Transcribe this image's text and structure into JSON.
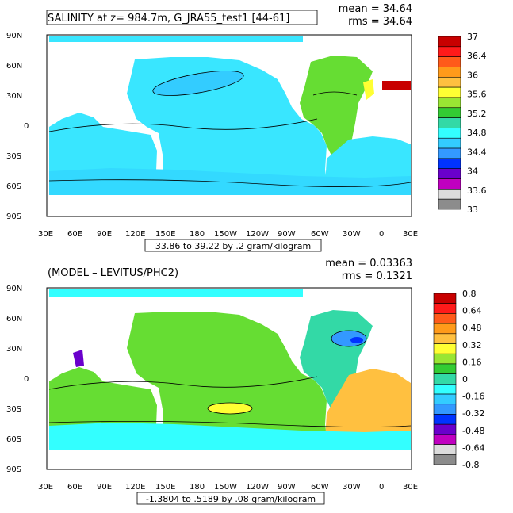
{
  "panels": [
    {
      "title": "SALINITY at z= 984.7m, G_JRA55_test1 [44-61]",
      "stats": {
        "mean": "mean = 34.64",
        "rms": "rms = 34.64"
      },
      "range_label": "33.86 to 39.22 by .2 gram/kilogram",
      "colorbar": {
        "labels": [
          "37",
          "36.4",
          "36",
          "35.6",
          "35.2",
          "34.8",
          "34.4",
          "34",
          "33.6",
          "33"
        ],
        "colors": [
          "#c80000",
          "#ff1a1a",
          "#ff5a1a",
          "#ff9a1a",
          "#ffc040",
          "#ffff33",
          "#99e633",
          "#33cc33",
          "#33d9a6",
          "#33ffff",
          "#33ccff",
          "#3399ff",
          "#0033ff",
          "#6a00cc",
          "#c000c0",
          "#dcdcdc",
          "#8c8c8c"
        ]
      }
    },
    {
      "title": "(MODEL – LEVITUS/PHC2)",
      "stats": {
        "mean": "mean = 0.03363",
        "rms": "rms = 0.1321"
      },
      "range_label": "-1.3804 to .5189 by .08 gram/kilogram",
      "colorbar": {
        "labels": [
          "0.8",
          "0.64",
          "0.48",
          "0.32",
          "0.16",
          "0",
          "-0.16",
          "-0.32",
          "-0.48",
          "-0.64",
          "-0.8"
        ],
        "colors": [
          "#c80000",
          "#ff1a1a",
          "#ff5a1a",
          "#ff9a1a",
          "#ffc040",
          "#ffff33",
          "#99e633",
          "#33cc33",
          "#33d9a6",
          "#33ffff",
          "#33ccff",
          "#3399ff",
          "#0033ff",
          "#6a00cc",
          "#c000c0",
          "#dcdcdc",
          "#8c8c8c"
        ]
      }
    }
  ],
  "axes": {
    "lat_labels": [
      "90N",
      "60N",
      "30N",
      "0",
      "30S",
      "60S",
      "90S"
    ],
    "lon_labels": [
      "30E",
      "60E",
      "90E",
      "120E",
      "150E",
      "180",
      "150W",
      "120W",
      "90W",
      "60W",
      "30W",
      "0",
      "30E"
    ]
  },
  "colors": {
    "ocean_top": "#39e6ff",
    "subpolar_top": "#33ccff",
    "atlantic_top": "#66dd33",
    "land": "#ffffff",
    "ocean_bottom": "#66dd33",
    "southern_bottom": "#33ffff",
    "atlantic_bottom": "#ffc040"
  }
}
